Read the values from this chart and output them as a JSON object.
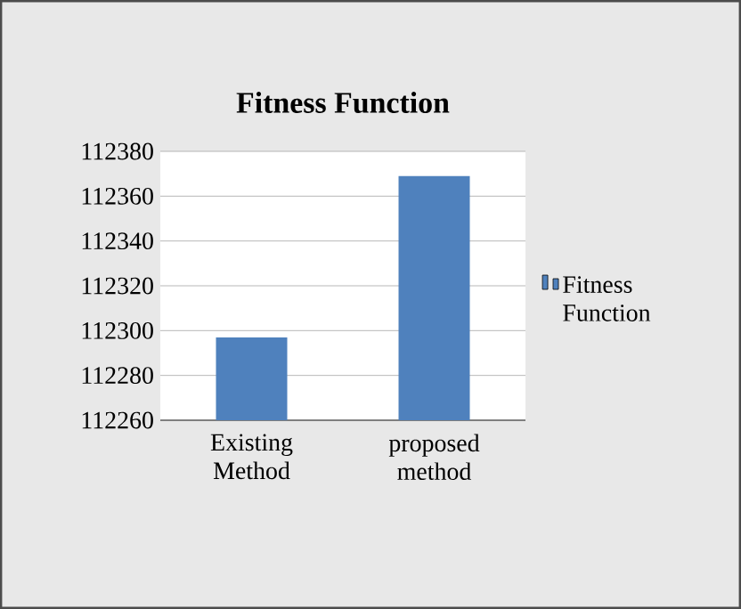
{
  "chart_data": {
    "type": "bar",
    "title": "Fitness Function",
    "categories": [
      "Existing Method",
      "proposed method"
    ],
    "series": [
      {
        "name": "Fitness Function",
        "color": "#4f81bd",
        "values": [
          112297,
          112369
        ]
      }
    ],
    "ylim": [
      112260,
      112380
    ],
    "yticks": [
      112260,
      112280,
      112300,
      112320,
      112340,
      112360,
      112380
    ],
    "grid": "y",
    "legend": "right"
  }
}
